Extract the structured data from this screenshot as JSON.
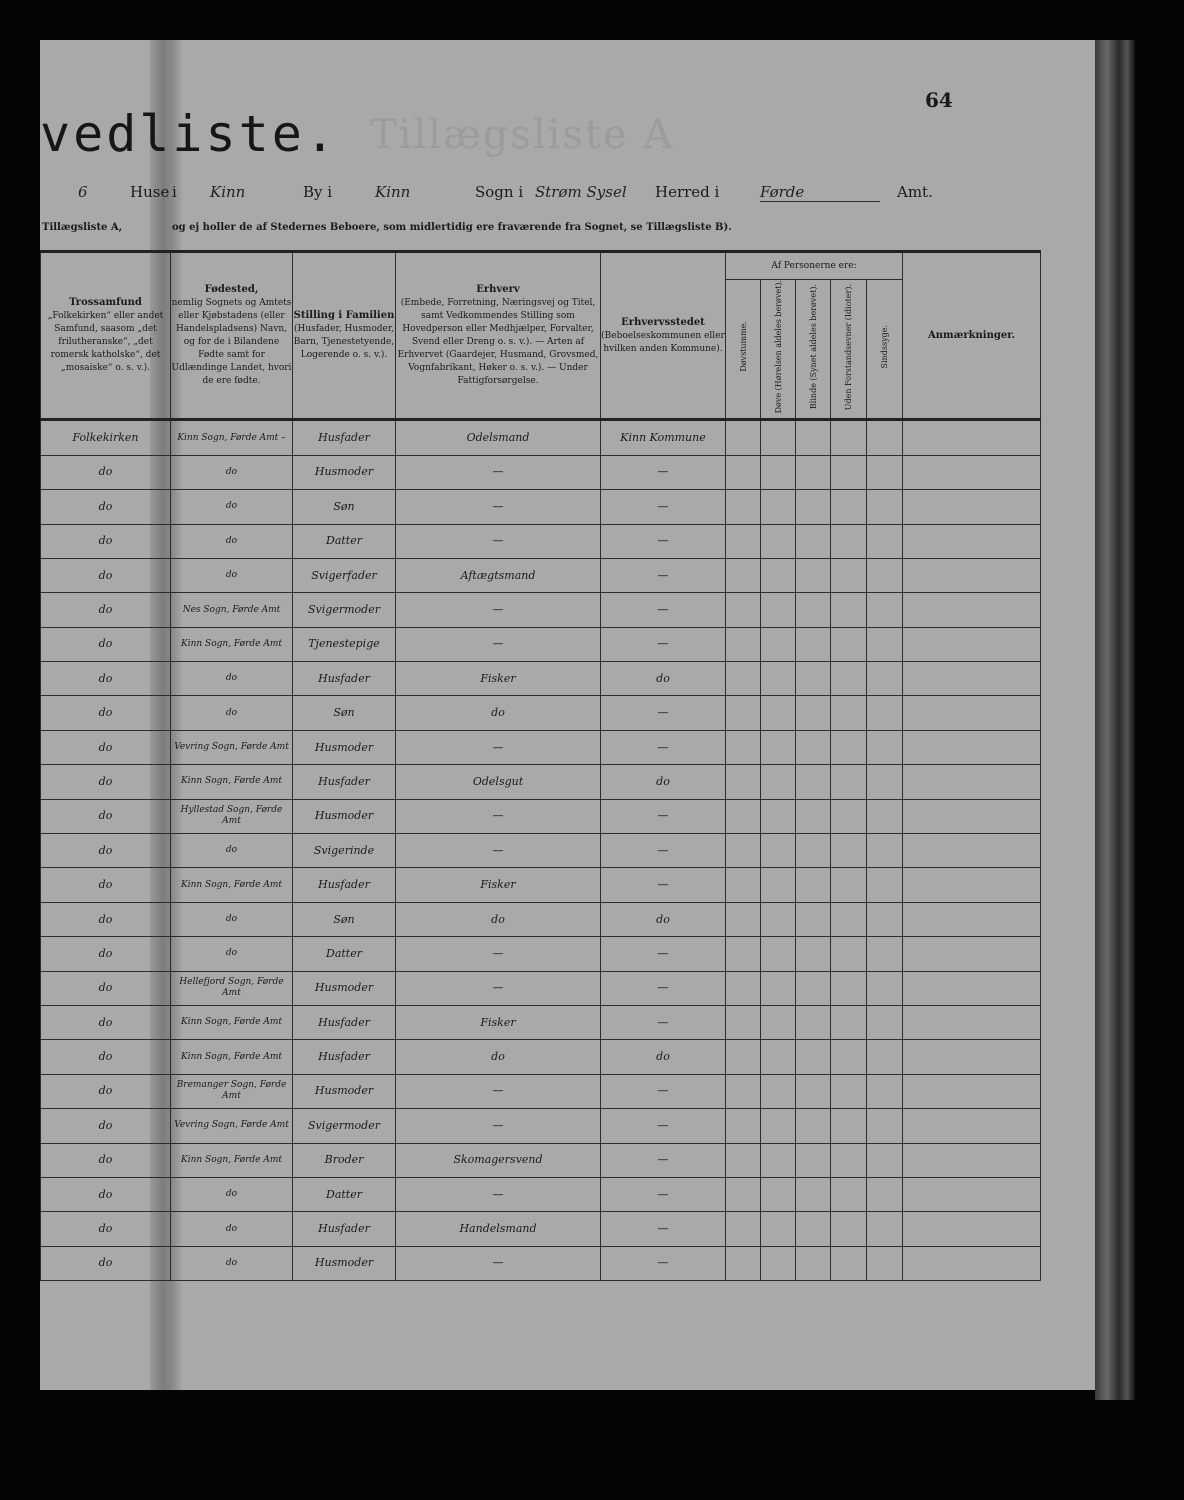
{
  "header": {
    "title": "vedliste.",
    "page_number": "64",
    "ghost_text": "Tillægsliste A",
    "line1": {
      "house_no": "6",
      "huse_label": "Huse",
      "i_label": "i",
      "place1": "Kinn",
      "by_label": "By i",
      "place2": "Kinn",
      "sogn_label": "Sogn i",
      "sogn": "Strøm Sysel",
      "herred_label": "Herred i",
      "amt_value": "Førde",
      "amt_label": "Amt."
    },
    "line2_left": "Tillægsliste A,",
    "line2": "og ej holler de af Stedernes Beboere, som midlertidig ere fraværende fra Sognet, se Tillægsliste B)."
  },
  "columns": {
    "tros": {
      "title": "Trossamfund",
      "desc": "„Folkekirken“ eller andet Samfund, saasom „det frilutheranske“, „det romersk katholske“, det „mosaiske“ o. s. v.)."
    },
    "fodested": {
      "title": "Fødested,",
      "desc": "nemlig Sognets og Amtets eller Kjøbstadens (eller Handelspladsens) Navn, og for de i Bilandene Fødte samt for Udlændinge Landet, hvori de ere fødte."
    },
    "stilling": {
      "title": "Stilling i Familien",
      "desc": "(Husfader, Husmoder, Barn, Tjenestetyende, Logerende o. s. v.)."
    },
    "erhverv": {
      "title": "Erhverv",
      "desc": "(Embede, Forretning, Næringsvej og Titel, samt Vedkommendes Stilling som Hovedperson eller Medhjælper, Forvalter, Svend eller Dreng o. s. v.). — Arten af Erhvervet (Gaardejer, Husmand, Grovsmed, Vognfabrikant, Høker o. s. v.). — Under Fattigforsørgelse."
    },
    "erhvervsstedet": {
      "title": "Erhvervsstedet",
      "desc": "(Beboelseskommunen eller hvilken anden Kommune)."
    },
    "af_personerne": "Af Personerne ere:",
    "sub": [
      "Døvstumme.",
      "Døve (Hørelsen aldeles berøvet).",
      "Blinde (Synet aldeles berøvet).",
      "Uden Forstandsevner (Idioter).",
      "Sindssyge."
    ],
    "anmaerkninger": "Anmærkninger."
  },
  "rows": [
    {
      "tros": "Folkekirken",
      "fodested": "Kinn Sogn, Førde Amt –",
      "stilling": "Husfader",
      "erhverv": "Odelsmand",
      "sted": "Kinn Kommune"
    },
    {
      "tros": "do",
      "fodested": "do",
      "stilling": "Husmoder",
      "erhverv": "—",
      "sted": "—"
    },
    {
      "tros": "do",
      "fodested": "do",
      "stilling": "Søn",
      "erhverv": "—",
      "sted": "—"
    },
    {
      "tros": "do",
      "fodested": "do",
      "stilling": "Datter",
      "erhverv": "—",
      "sted": "—"
    },
    {
      "tros": "do",
      "fodested": "do",
      "stilling": "Svigerfader",
      "erhverv": "Aftægtsmand",
      "sted": "—"
    },
    {
      "tros": "do",
      "fodested": "Nes Sogn, Førde Amt",
      "stilling": "Svigermoder",
      "erhverv": "—",
      "sted": "—"
    },
    {
      "tros": "do",
      "fodested": "Kinn Sogn, Førde Amt",
      "stilling": "Tjenestepige",
      "erhverv": "—",
      "sted": "—"
    },
    {
      "tros": "do",
      "fodested": "do",
      "stilling": "Husfader",
      "erhverv": "Fisker",
      "sted": "do"
    },
    {
      "tros": "do",
      "fodested": "do",
      "stilling": "Søn",
      "erhverv": "do",
      "sted": "—"
    },
    {
      "tros": "do",
      "fodested": "Vevring Sogn, Førde Amt",
      "stilling": "Husmoder",
      "erhverv": "—",
      "sted": "—"
    },
    {
      "tros": "do",
      "fodested": "Kinn Sogn, Førde Amt",
      "stilling": "Husfader",
      "erhverv": "Odelsgut",
      "sted": "do"
    },
    {
      "tros": "do",
      "fodested": "Hyllestad Sogn, Førde Amt",
      "stilling": "Husmoder",
      "erhverv": "—",
      "sted": "—"
    },
    {
      "tros": "do",
      "fodested": "do",
      "stilling": "Svigerinde",
      "erhverv": "—",
      "sted": "—"
    },
    {
      "tros": "do",
      "fodested": "Kinn Sogn, Førde Amt",
      "stilling": "Husfader",
      "erhverv": "Fisker",
      "sted": "—"
    },
    {
      "tros": "do",
      "fodested": "do",
      "stilling": "Søn",
      "erhverv": "do",
      "sted": "do"
    },
    {
      "tros": "do",
      "fodested": "do",
      "stilling": "Datter",
      "erhverv": "—",
      "sted": "—"
    },
    {
      "tros": "do",
      "fodested": "Hellefjord Sogn, Førde Amt",
      "stilling": "Husmoder",
      "erhverv": "—",
      "sted": "—"
    },
    {
      "tros": "do",
      "fodested": "Kinn Sogn, Førde Amt",
      "stilling": "Husfader",
      "erhverv": "Fisker",
      "sted": "—"
    },
    {
      "tros": "do",
      "fodested": "Kinn Sogn, Førde Amt",
      "stilling": "Husfader",
      "erhverv": "do",
      "sted": "do"
    },
    {
      "tros": "do",
      "fodested": "Bremanger Sogn, Førde Amt",
      "stilling": "Husmoder",
      "erhverv": "—",
      "sted": "—"
    },
    {
      "tros": "do",
      "fodested": "Vevring Sogn, Førde Amt",
      "stilling": "Svigermoder",
      "erhverv": "—",
      "sted": "—"
    },
    {
      "tros": "do",
      "fodested": "Kinn Sogn, Førde Amt",
      "stilling": "Broder",
      "erhverv": "Skomagersvend",
      "sted": "—"
    },
    {
      "tros": "do",
      "fodested": "do",
      "stilling": "Datter",
      "erhverv": "—",
      "sted": "—"
    },
    {
      "tros": "do",
      "fodested": "do",
      "stilling": "Husfader",
      "erhverv": "Handelsmand",
      "sted": "—"
    },
    {
      "tros": "do",
      "fodested": "do",
      "stilling": "Husmoder",
      "erhverv": "—",
      "sted": "—"
    }
  ]
}
